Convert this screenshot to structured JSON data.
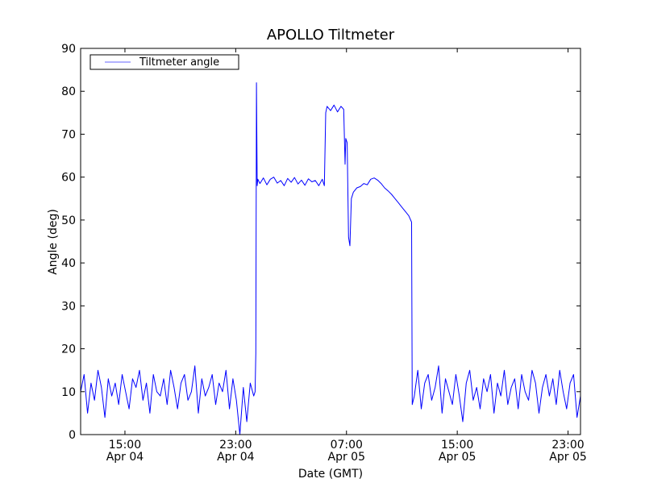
{
  "chart_data": {
    "type": "line",
    "title": "APOLLO Tiltmeter",
    "xlabel": "Date (GMT)",
    "ylabel": "Angle (deg)",
    "x_units": "hours since Apr 04 00:00 GMT",
    "xlim": [
      11.8,
      47.9
    ],
    "ylim": [
      0,
      90
    ],
    "yticks": [
      0,
      10,
      20,
      30,
      40,
      50,
      60,
      70,
      80,
      90
    ],
    "xticks": [
      {
        "value": 15,
        "time": "15:00",
        "date": "Apr 04"
      },
      {
        "value": 23,
        "time": "23:00",
        "date": "Apr 04"
      },
      {
        "value": 31,
        "time": "07:00",
        "date": "Apr 05"
      },
      {
        "value": 39,
        "time": "15:00",
        "date": "Apr 05"
      },
      {
        "value": 47,
        "time": "23:00",
        "date": "Apr 05"
      }
    ],
    "grid": false,
    "legend": {
      "placement": "top-left",
      "entries": [
        "Tiltmeter angle"
      ]
    },
    "series": [
      {
        "name": "Tiltmeter angle",
        "color": "#0000ff",
        "segments": [
          {
            "x0": 11.8,
            "dx": 0.25,
            "y": [
              10,
              14,
              5,
              12,
              8,
              15,
              11,
              4,
              13,
              9,
              12,
              7,
              14,
              10,
              6,
              13,
              11,
              15,
              8,
              12,
              5,
              14,
              10,
              9,
              13,
              7,
              15,
              11,
              6,
              12,
              14,
              8,
              10,
              16,
              5,
              13,
              9,
              11,
              14,
              7,
              12,
              10,
              15,
              6,
              13,
              8,
              0,
              11,
              3,
              12,
              9
            ]
          },
          {
            "points": [
              [
                24.4,
                10
              ],
              [
                24.45,
                19
              ],
              [
                24.5,
                82
              ],
              [
                24.55,
                58
              ],
              [
                24.6,
                59.5
              ],
              [
                24.75,
                58.5
              ],
              [
                25,
                59.8
              ],
              [
                25.25,
                58.2
              ],
              [
                25.5,
                59.5
              ],
              [
                25.75,
                60
              ],
              [
                26,
                58.6
              ],
              [
                26.25,
                59.2
              ],
              [
                26.5,
                58
              ],
              [
                26.75,
                59.7
              ],
              [
                27,
                58.8
              ],
              [
                27.25,
                59.9
              ],
              [
                27.5,
                58.4
              ],
              [
                27.75,
                59.3
              ],
              [
                28,
                58.1
              ],
              [
                28.25,
                59.6
              ],
              [
                28.5,
                58.9
              ],
              [
                28.75,
                59.2
              ],
              [
                29,
                58
              ],
              [
                29.25,
                59.5
              ],
              [
                29.4,
                58
              ],
              [
                29.5,
                75
              ],
              [
                29.6,
                76.5
              ],
              [
                29.85,
                75.5
              ],
              [
                30.1,
                76.8
              ],
              [
                30.35,
                75.2
              ],
              [
                30.6,
                76.5
              ],
              [
                30.8,
                75.8
              ],
              [
                30.9,
                63
              ],
              [
                30.95,
                69
              ],
              [
                31.05,
                68
              ],
              [
                31.15,
                46
              ],
              [
                31.25,
                44
              ],
              [
                31.35,
                55
              ],
              [
                31.5,
                56.5
              ],
              [
                31.75,
                57.5
              ],
              [
                32,
                57.8
              ],
              [
                32.25,
                58.5
              ],
              [
                32.5,
                58.2
              ],
              [
                32.75,
                59.5
              ],
              [
                33,
                59.8
              ],
              [
                33.25,
                59.3
              ],
              [
                33.5,
                58.5
              ],
              [
                33.75,
                57.5
              ],
              [
                34,
                56.8
              ],
              [
                34.25,
                56
              ],
              [
                34.5,
                55
              ],
              [
                34.75,
                54
              ],
              [
                35,
                53
              ],
              [
                35.25,
                52
              ],
              [
                35.5,
                51
              ],
              [
                35.7,
                49.5
              ],
              [
                35.75,
                7
              ]
            ]
          },
          {
            "x0": 35.9,
            "dx": 0.25,
            "y": [
              9,
              15,
              6,
              12,
              14,
              8,
              11,
              16,
              5,
              13,
              10,
              7,
              14,
              9,
              3,
              12,
              15,
              8,
              11,
              6,
              13,
              10,
              14,
              5,
              12,
              9,
              15,
              7,
              11,
              13,
              6,
              14,
              10,
              8,
              15,
              12,
              5,
              11,
              14,
              9,
              13,
              7,
              15,
              10,
              6,
              12,
              14,
              4,
              9
            ]
          }
        ]
      }
    ]
  }
}
